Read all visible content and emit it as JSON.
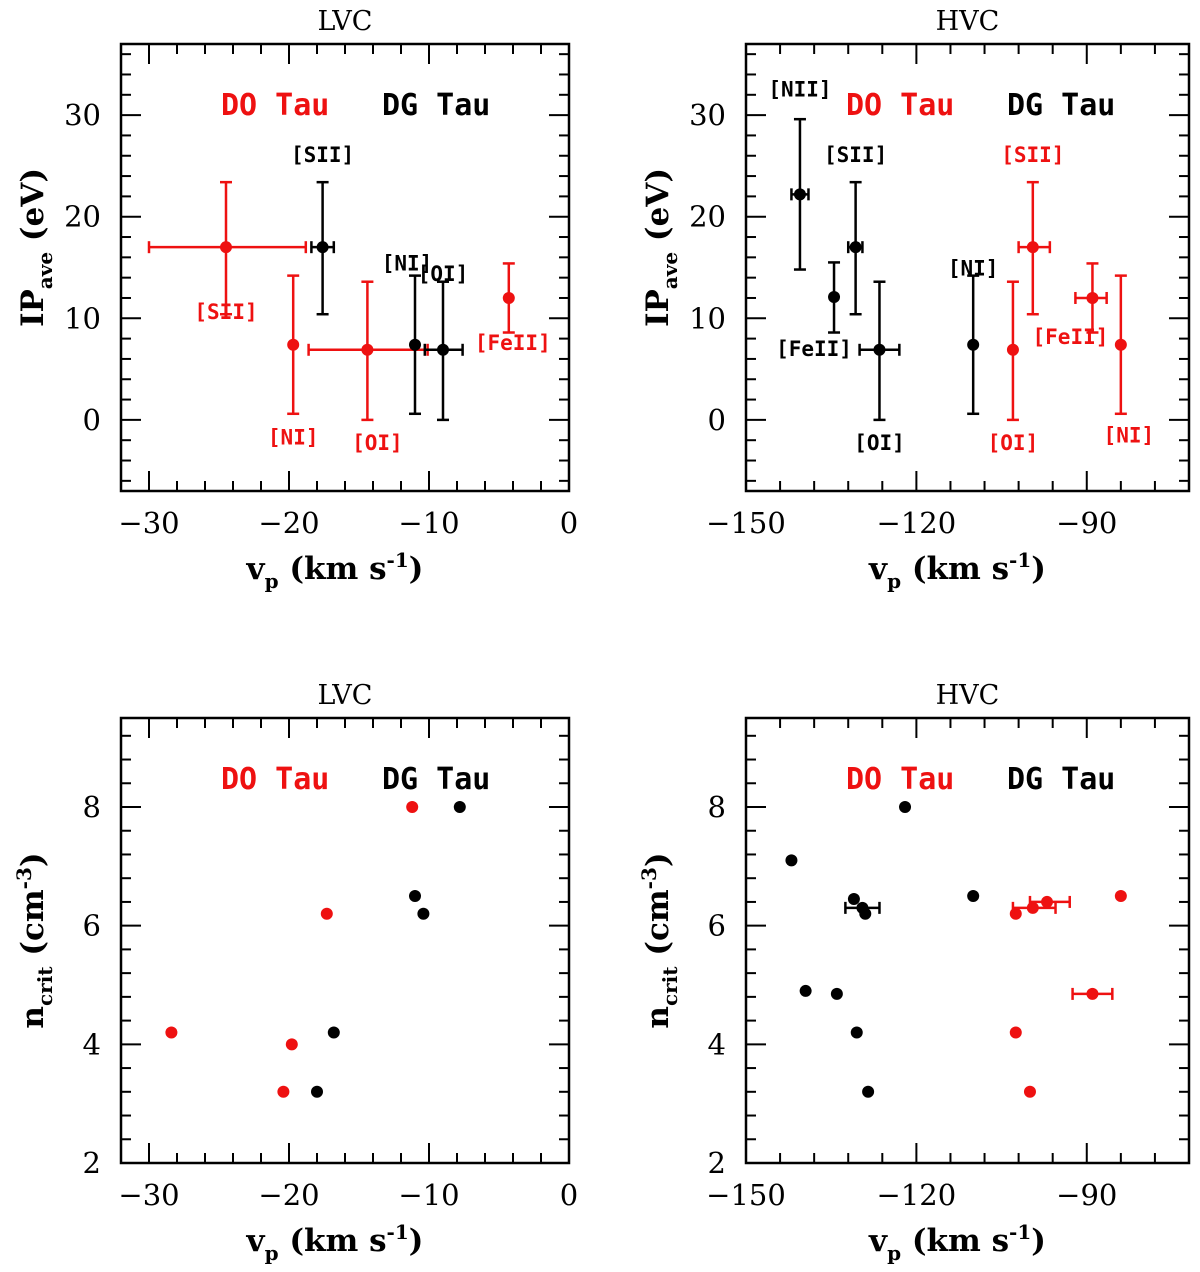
{
  "colors": {
    "do_tau": "#ee1111",
    "dg_tau": "#000000"
  },
  "legend": {
    "do_tau": "DO Tau",
    "dg_tau": "DG Tau"
  },
  "xlabel": {
    "main": "v",
    "sub": "p",
    "unit_open": " (km s",
    "sup": "-1",
    "unit_close": ")"
  },
  "ylabel_ip": {
    "main": "IP",
    "sub": "ave",
    "unit": " (eV)"
  },
  "ylabel_n": {
    "main": "n",
    "sub": "crit",
    "unit_open": " (cm",
    "sup": "-3",
    "unit_close": ")"
  },
  "chart_data": [
    {
      "type": "scatter",
      "title": "LVC",
      "xlim": [
        -32,
        0
      ],
      "ylim": [
        -7,
        37
      ],
      "xticks": [
        -30,
        -20,
        -10,
        0
      ],
      "yticks": [
        0,
        10,
        20,
        30
      ],
      "series": [
        {
          "name": "DO Tau",
          "points": [
            {
              "x": -24.5,
              "y": 17,
              "xlo": -30,
              "xhi": -18.8,
              "ylo": 10.4,
              "yhi": 23.4,
              "label": "[SII]"
            },
            {
              "x": -19.7,
              "y": 7.4,
              "ylo": 0.6,
              "yhi": 14.2,
              "label": "[NI]"
            },
            {
              "x": -14.4,
              "y": 6.9,
              "xlo": -18.6,
              "xhi": -10.1,
              "ylo": 0,
              "yhi": 13.6,
              "label": "[OI]"
            },
            {
              "x": -4.3,
              "y": 12,
              "ylo": 8.6,
              "yhi": 15.4,
              "label": "[FeII]"
            }
          ]
        },
        {
          "name": "DG Tau",
          "points": [
            {
              "x": -17.6,
              "y": 17,
              "xlo": -18.4,
              "xhi": -16.8,
              "ylo": 10.4,
              "yhi": 23.4,
              "label": "[SII]"
            },
            {
              "x": -11,
              "y": 7.4,
              "ylo": 0.6,
              "yhi": 14.2,
              "label": "[NI]"
            },
            {
              "x": -9,
              "y": 6.9,
              "xlo": -10.3,
              "xhi": -7.6,
              "ylo": 0,
              "yhi": 13.6,
              "label": "[OI]"
            }
          ]
        }
      ]
    },
    {
      "type": "scatter",
      "title": "HVC",
      "xlim": [
        -150,
        -72
      ],
      "ylim": [
        -7,
        37
      ],
      "xticks": [
        -150,
        -120,
        -90
      ],
      "yticks": [
        0,
        10,
        20,
        30
      ],
      "series": [
        {
          "name": "DO Tau",
          "points": [
            {
              "x": -99.5,
              "y": 17,
              "xlo": -102,
              "xhi": -96.5,
              "ylo": 10.4,
              "yhi": 23.4,
              "label": "[SII]"
            },
            {
              "x": -89,
              "y": 12,
              "xlo": -92,
              "xhi": -86.5,
              "ylo": 8.6,
              "yhi": 15.4,
              "label": "[FeII]"
            },
            {
              "x": -84,
              "y": 7.4,
              "ylo": 0.6,
              "yhi": 14.2,
              "label": "[NI]"
            },
            {
              "x": -103,
              "y": 6.9,
              "ylo": 0,
              "yhi": 13.6,
              "label": "[OI]"
            }
          ]
        },
        {
          "name": "DG Tau",
          "points": [
            {
              "x": -140.5,
              "y": 22.2,
              "xlo": -142,
              "xhi": -139,
              "ylo": 14.8,
              "yhi": 29.6,
              "label": "[NII]"
            },
            {
              "x": -134.5,
              "y": 12.1,
              "ylo": 8.6,
              "yhi": 15.5,
              "label": "[FeII]"
            },
            {
              "x": -130.7,
              "y": 17,
              "xlo": -132,
              "xhi": -129.5,
              "ylo": 10.4,
              "yhi": 23.4,
              "label": "[SII]"
            },
            {
              "x": -126.5,
              "y": 6.9,
              "xlo": -130,
              "xhi": -123,
              "ylo": 0,
              "yhi": 13.6,
              "label": "[OI]"
            },
            {
              "x": -110,
              "y": 7.4,
              "ylo": 0.6,
              "yhi": 14.2,
              "label": "[NI]"
            }
          ]
        }
      ]
    },
    {
      "type": "scatter",
      "title": "LVC",
      "xlim": [
        -32,
        0
      ],
      "ylim": [
        2,
        9.5
      ],
      "xticks": [
        -30,
        -20,
        -10,
        0
      ],
      "yticks": [
        2,
        4,
        6,
        8
      ],
      "series": [
        {
          "name": "DO Tau",
          "points": [
            {
              "x": -28.4,
              "y": 4.2
            },
            {
              "x": -20.4,
              "y": 3.2
            },
            {
              "x": -19.8,
              "y": 4
            },
            {
              "x": -17.3,
              "y": 6.2
            },
            {
              "x": -11.2,
              "y": 8
            }
          ]
        },
        {
          "name": "DG Tau",
          "points": [
            {
              "x": -18,
              "y": 3.2
            },
            {
              "x": -16.8,
              "y": 4.2
            },
            {
              "x": -11,
              "y": 6.5
            },
            {
              "x": -10.4,
              "y": 6.2
            },
            {
              "x": -7.8,
              "y": 8
            }
          ]
        }
      ]
    },
    {
      "type": "scatter",
      "title": "HVC",
      "xlim": [
        -150,
        -72
      ],
      "ylim": [
        2,
        9.5
      ],
      "xticks": [
        -150,
        -120,
        -90
      ],
      "yticks": [
        2,
        4,
        6,
        8
      ],
      "series": [
        {
          "name": "DO Tau",
          "points": [
            {
              "x": -102.5,
              "y": 6.2
            },
            {
              "x": -99.5,
              "y": 6.3,
              "xlo": -103,
              "xhi": -95.5
            },
            {
              "x": -97,
              "y": 6.4,
              "xlo": -100,
              "xhi": -93
            },
            {
              "x": -84,
              "y": 6.5
            },
            {
              "x": -89,
              "y": 4.85,
              "xlo": -92.5,
              "xhi": -85.5
            },
            {
              "x": -102.5,
              "y": 4.2
            },
            {
              "x": -100,
              "y": 3.2
            }
          ]
        },
        {
          "name": "DG Tau",
          "points": [
            {
              "x": -142,
              "y": 7.1
            },
            {
              "x": -122,
              "y": 8
            },
            {
              "x": -131,
              "y": 6.45
            },
            {
              "x": -129.5,
              "y": 6.3,
              "xlo": -132.5,
              "xhi": -126.5
            },
            {
              "x": -129,
              "y": 6.2
            },
            {
              "x": -139.5,
              "y": 4.9
            },
            {
              "x": -134,
              "y": 4.85
            },
            {
              "x": -130.5,
              "y": 4.2
            },
            {
              "x": -128.5,
              "y": 3.2
            },
            {
              "x": -110,
              "y": 6.5
            }
          ]
        }
      ]
    }
  ]
}
